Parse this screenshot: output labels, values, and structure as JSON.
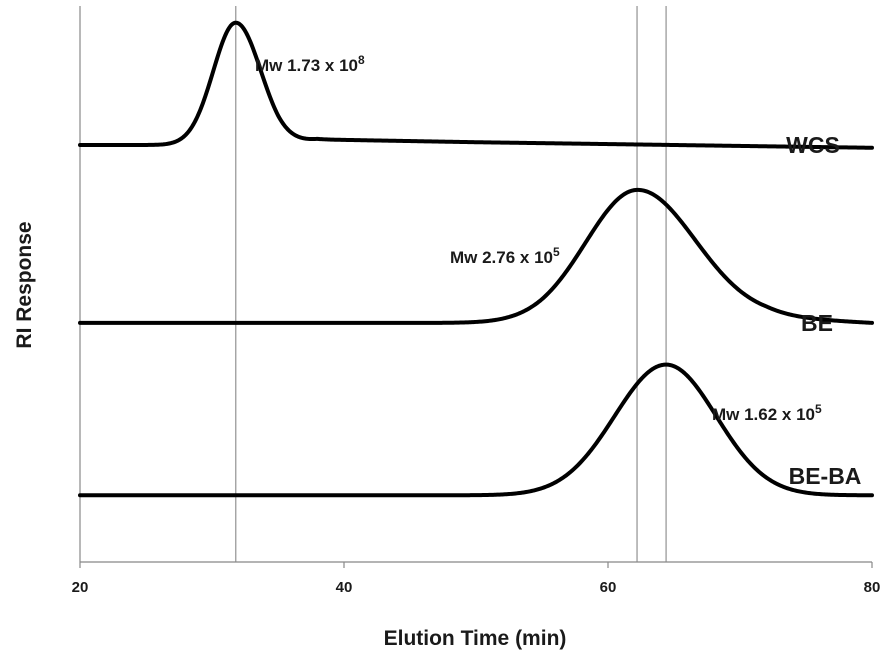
{
  "chart_data": {
    "type": "line",
    "xlabel": "Elution Time (min)",
    "ylabel": "RI Response",
    "xlim": [
      20,
      80
    ],
    "xticks": [
      "20",
      "40",
      "60",
      "80"
    ],
    "grid": false,
    "reference_lines_x": [
      31.8,
      62.2,
      64.4
    ],
    "series": [
      {
        "name": "WCS",
        "baseline": 0.75,
        "peak_x": 31.8,
        "peak_height": 0.22,
        "sigma_left": 1.7,
        "sigma_right": 1.9,
        "drift": [
          [
            20,
            0.0
          ],
          [
            35,
            0.0
          ],
          [
            38,
            0.01
          ],
          [
            50,
            0.005
          ],
          [
            80,
            -0.005
          ]
        ],
        "annotation": {
          "base": "Mw 1.73 x 10",
          "exp": "8"
        }
      },
      {
        "name": "BE",
        "baseline": 0.43,
        "peak_x": 62.2,
        "peak_height": 0.235,
        "sigma_left": 3.9,
        "sigma_right": 4.4,
        "drift": [
          [
            20,
            0.0
          ],
          [
            55,
            0.0
          ],
          [
            72,
            0.01
          ],
          [
            80,
            0.0
          ]
        ],
        "annotation": {
          "base": "Mw 2.76 x 10",
          "exp": "5"
        }
      },
      {
        "name": "BE-BA",
        "baseline": 0.12,
        "peak_x": 64.4,
        "peak_height": 0.235,
        "sigma_left": 3.9,
        "sigma_right": 3.8,
        "drift": [
          [
            20,
            0.0
          ],
          [
            80,
            0.0
          ]
        ],
        "annotation": {
          "base": "Mw 1.62 x 10",
          "exp": "5"
        }
      }
    ]
  }
}
